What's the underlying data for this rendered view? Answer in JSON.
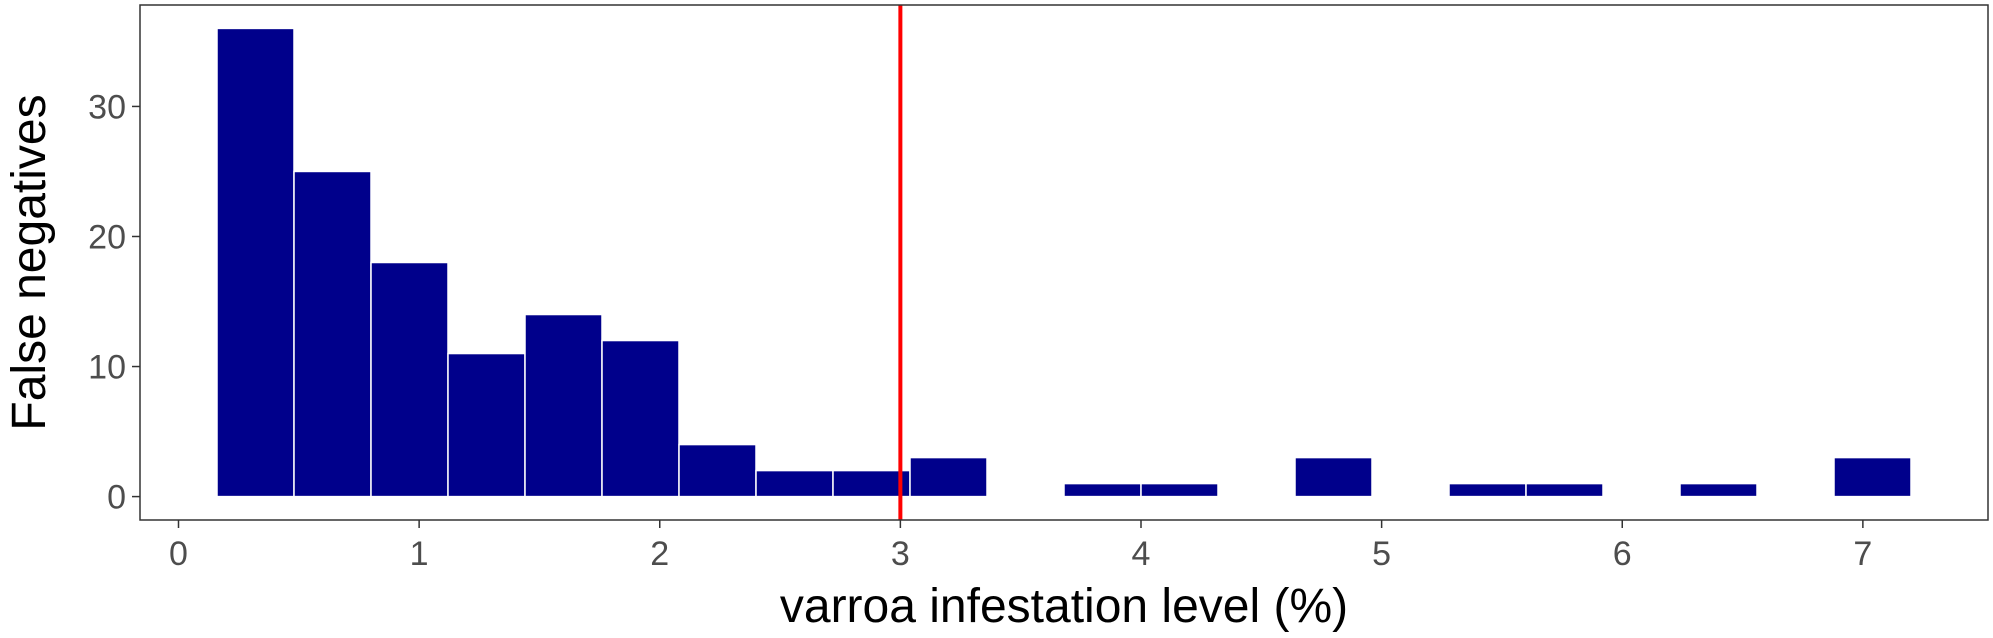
{
  "chart_data": {
    "type": "bar",
    "xlabel": "varroa infestation level (%)",
    "ylabel": "False negatives",
    "xlim": [
      -0.16,
      7.52
    ],
    "ylim": [
      -1.8,
      37.8
    ],
    "x_ticks": [
      0,
      1,
      2,
      3,
      4,
      5,
      6,
      7
    ],
    "y_ticks": [
      0,
      10,
      20,
      30
    ],
    "bin_width": 0.32,
    "bins": [
      {
        "x0": 0.16,
        "x1": 0.48,
        "value": 36
      },
      {
        "x0": 0.48,
        "x1": 0.8,
        "value": 25
      },
      {
        "x0": 0.8,
        "x1": 1.12,
        "value": 18
      },
      {
        "x0": 1.12,
        "x1": 1.44,
        "value": 11
      },
      {
        "x0": 1.44,
        "x1": 1.76,
        "value": 14
      },
      {
        "x0": 1.76,
        "x1": 2.08,
        "value": 12
      },
      {
        "x0": 2.08,
        "x1": 2.4,
        "value": 4
      },
      {
        "x0": 2.4,
        "x1": 2.72,
        "value": 2
      },
      {
        "x0": 2.72,
        "x1": 3.04,
        "value": 2
      },
      {
        "x0": 3.04,
        "x1": 3.36,
        "value": 3
      },
      {
        "x0": 3.36,
        "x1": 3.68,
        "value": 0
      },
      {
        "x0": 3.68,
        "x1": 4.0,
        "value": 1
      },
      {
        "x0": 4.0,
        "x1": 4.32,
        "value": 1
      },
      {
        "x0": 4.32,
        "x1": 4.64,
        "value": 0
      },
      {
        "x0": 4.64,
        "x1": 4.96,
        "value": 3
      },
      {
        "x0": 4.96,
        "x1": 5.28,
        "value": 0
      },
      {
        "x0": 5.28,
        "x1": 5.6,
        "value": 1
      },
      {
        "x0": 5.6,
        "x1": 5.92,
        "value": 1
      },
      {
        "x0": 5.92,
        "x1": 6.24,
        "value": 0
      },
      {
        "x0": 6.24,
        "x1": 6.56,
        "value": 1
      },
      {
        "x0": 6.56,
        "x1": 6.88,
        "value": 0
      },
      {
        "x0": 6.88,
        "x1": 7.2,
        "value": 3
      }
    ],
    "vline": {
      "x": 3.0,
      "color": "#ff0000"
    },
    "bar_color": "#00008b",
    "bar_edge_color": "#ffffff",
    "grid": false
  }
}
